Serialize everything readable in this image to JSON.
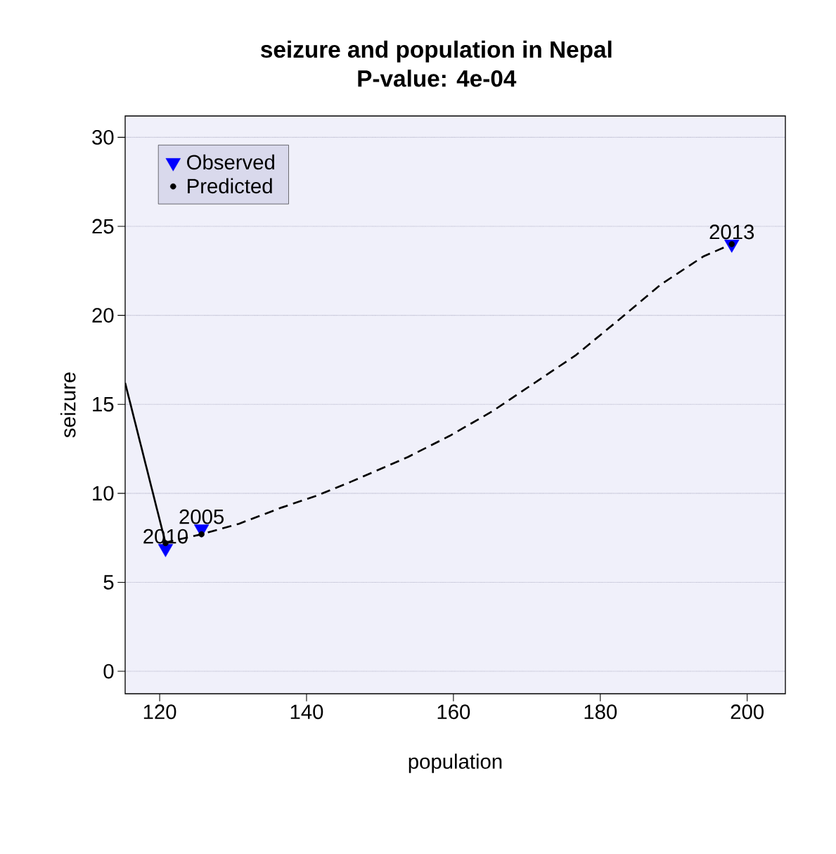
{
  "chart_data": {
    "type": "scatter",
    "title": "seizure and population in Nepal",
    "subtitle": "P-value:  4e-04",
    "xlabel": "population",
    "ylabel": "seizure",
    "xlim": [
      115.3,
      205.2
    ],
    "ylim": [
      -1.26,
      31.2
    ],
    "xticks": [
      120,
      140,
      160,
      180,
      200
    ],
    "yticks": [
      0,
      5,
      10,
      15,
      20,
      25,
      30
    ],
    "grid": "y",
    "legend": "top left",
    "series": [
      {
        "name": "Observed",
        "marker": "triangle",
        "color": "#0000ff",
        "x": [
          125.7,
          120.8,
          197.9
        ],
        "values": [
          8.0,
          6.9,
          24.0
        ]
      },
      {
        "name": "Predicted",
        "marker": "circle",
        "color": "#000000",
        "x": [
          125.7,
          120.8,
          197.9
        ],
        "values": [
          7.7,
          7.2,
          24.0
        ]
      },
      {
        "type": "line",
        "line_style": "solid",
        "color": "#000000",
        "x": [
          115.3,
          120.8
        ],
        "values": [
          16.2,
          7.2
        ]
      },
      {
        "type": "line",
        "line_style": "dashed",
        "color": "#000000",
        "x": [
          120.6,
          125.7,
          130.8,
          136.6,
          141.4,
          146.1,
          153.8,
          159.5,
          165.3,
          171.0,
          176.7,
          182.5,
          188.2,
          194.0,
          197.9
        ],
        "values": [
          7.22,
          7.7,
          8.29,
          9.2,
          9.87,
          10.66,
          12.04,
          13.23,
          14.61,
          16.19,
          17.77,
          19.74,
          21.72,
          23.3,
          24.0
        ]
      }
    ],
    "annotations": [
      {
        "text": "2005",
        "x": 125.7,
        "y": 8.0
      },
      {
        "text": "2010",
        "x": 120.8,
        "y": 6.9
      },
      {
        "text": "2013",
        "x": 197.9,
        "y": 24.0
      }
    ]
  }
}
